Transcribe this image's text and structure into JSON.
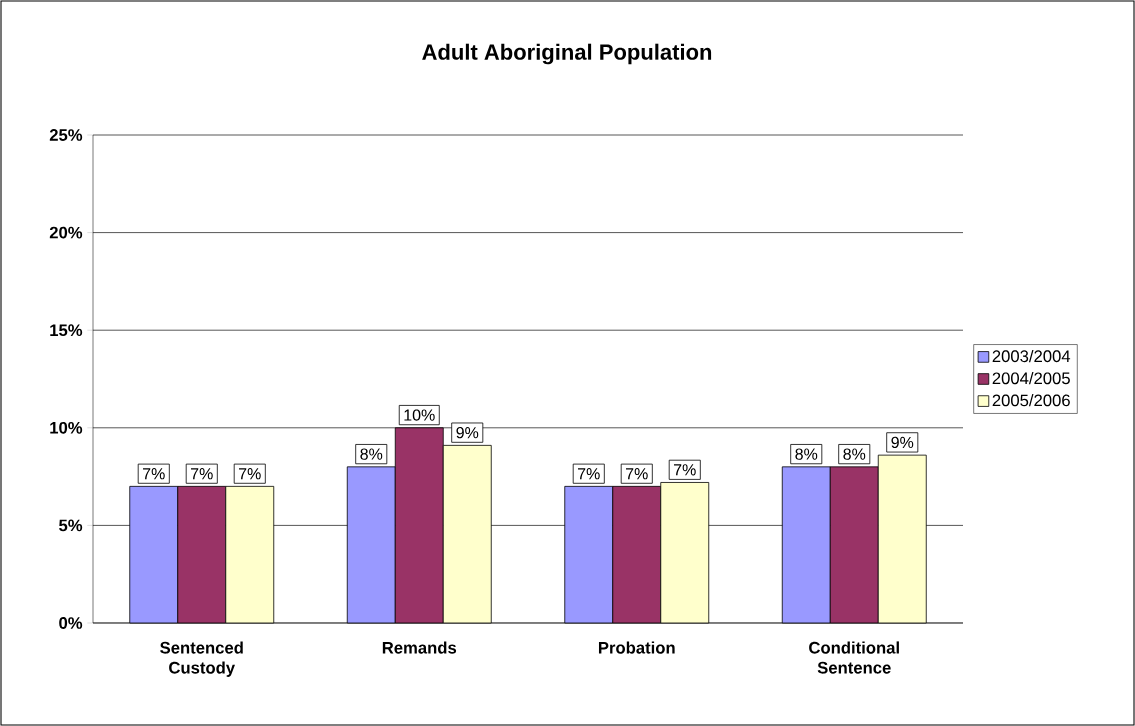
{
  "chart_data": {
    "type": "bar",
    "title": "Adult Aboriginal Population",
    "categories": [
      "Sentenced Custody",
      "Remands",
      "Probation",
      "Conditional Sentence"
    ],
    "series": [
      {
        "name": "2003/2004",
        "color": "#9999ff",
        "values": [
          7,
          8,
          7,
          8
        ],
        "value_labels": [
          "7%",
          "8%",
          "7%",
          "8%"
        ]
      },
      {
        "name": "2004/2005",
        "color": "#993366",
        "values": [
          7,
          10,
          7,
          8
        ],
        "value_labels": [
          "7%",
          "10%",
          "7%",
          "8%"
        ]
      },
      {
        "name": "2005/2006",
        "color": "#ffffcc",
        "values": [
          7,
          9.1,
          7.2,
          8.6
        ],
        "value_labels": [
          "7%",
          "9%",
          "7%",
          "9%"
        ]
      }
    ],
    "ylim": [
      0,
      25
    ],
    "yticks": [
      {
        "value": 0,
        "label": "0%"
      },
      {
        "value": 5,
        "label": "5%"
      },
      {
        "value": 10,
        "label": "10%"
      },
      {
        "value": 15,
        "label": "15%"
      },
      {
        "value": 20,
        "label": "20%"
      },
      {
        "value": 25,
        "label": "25%"
      }
    ],
    "grid": "y",
    "legend": "right"
  }
}
